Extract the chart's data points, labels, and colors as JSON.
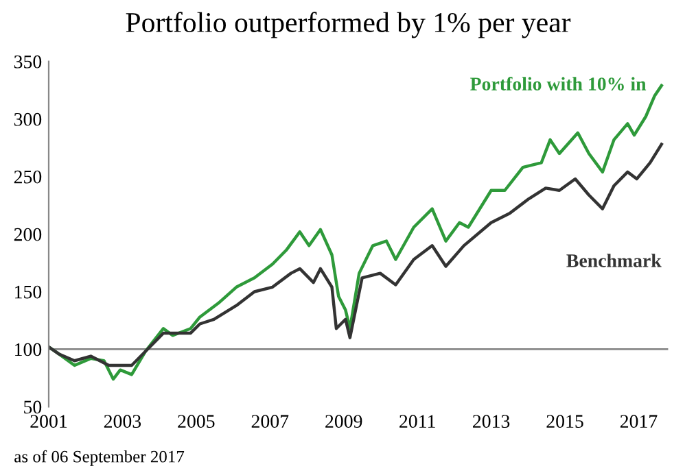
{
  "chart_data": {
    "type": "line",
    "title": "Portfolio outperformed by 1% per year",
    "annotations": [
      "as of 06 September 2017"
    ],
    "series": [
      {
        "name": "Portfolio with 10% in",
        "color": "#2e9a3a",
        "x": [
          2001.0,
          2001.27,
          2001.7,
          2002.14,
          2002.5,
          2002.75,
          2002.94,
          2003.25,
          2003.62,
          2004.11,
          2004.36,
          2004.85,
          2005.1,
          2005.6,
          2006.09,
          2006.58,
          2007.07,
          2007.44,
          2007.81,
          2008.06,
          2008.37,
          2008.68,
          2008.86,
          2009.05,
          2009.17,
          2009.42,
          2009.79,
          2010.16,
          2010.41,
          2010.9,
          2011.4,
          2011.77,
          2012.14,
          2012.38,
          2013.0,
          2013.37,
          2013.86,
          2014.36,
          2014.6,
          2014.85,
          2015.35,
          2015.65,
          2016.02,
          2016.33,
          2016.7,
          2016.88,
          2017.19,
          2017.43,
          2017.62
        ],
        "values": [
          102,
          96,
          86,
          92,
          90,
          74,
          82,
          78,
          98,
          118,
          112,
          118,
          128,
          140,
          154,
          162,
          174,
          186,
          202,
          190,
          204,
          182,
          146,
          134,
          118,
          166,
          190,
          194,
          178,
          206,
          222,
          194,
          210,
          206,
          238,
          238,
          258,
          262,
          282,
          270,
          288,
          270,
          254,
          282,
          296,
          286,
          302,
          320,
          329
        ]
      },
      {
        "name": "Benchmark",
        "color": "#333333",
        "x": [
          2001.0,
          2001.27,
          2001.7,
          2002.14,
          2002.63,
          2003.0,
          2003.25,
          2003.62,
          2004.11,
          2004.85,
          2005.1,
          2005.48,
          2006.09,
          2006.58,
          2007.07,
          2007.57,
          2007.81,
          2008.18,
          2008.37,
          2008.68,
          2008.8,
          2009.05,
          2009.17,
          2009.5,
          2009.99,
          2010.41,
          2010.9,
          2011.4,
          2011.77,
          2012.26,
          2013.0,
          2013.5,
          2013.99,
          2014.48,
          2014.85,
          2015.28,
          2015.65,
          2016.02,
          2016.33,
          2016.7,
          2016.95,
          2017.31,
          2017.62
        ],
        "values": [
          102,
          96,
          90,
          94,
          86,
          86,
          86,
          98,
          114,
          114,
          122,
          126,
          138,
          150,
          154,
          166,
          170,
          158,
          170,
          154,
          118,
          126,
          110,
          162,
          166,
          156,
          178,
          190,
          172,
          190,
          210,
          218,
          230,
          240,
          238,
          248,
          234,
          222,
          242,
          254,
          248,
          262,
          278
        ]
      }
    ],
    "xlim": [
      2001,
      2017.8
    ],
    "xticks": [
      2001,
      2003,
      2005,
      2007,
      2009,
      2011,
      2013,
      2015,
      2017
    ],
    "ylim": [
      50,
      350
    ],
    "yticks": [
      50,
      100,
      150,
      200,
      250,
      300,
      350
    ],
    "ref_lines": [
      {
        "axis": "y",
        "value": 100,
        "color": "#888888"
      }
    ],
    "grid": false,
    "legend": false
  }
}
